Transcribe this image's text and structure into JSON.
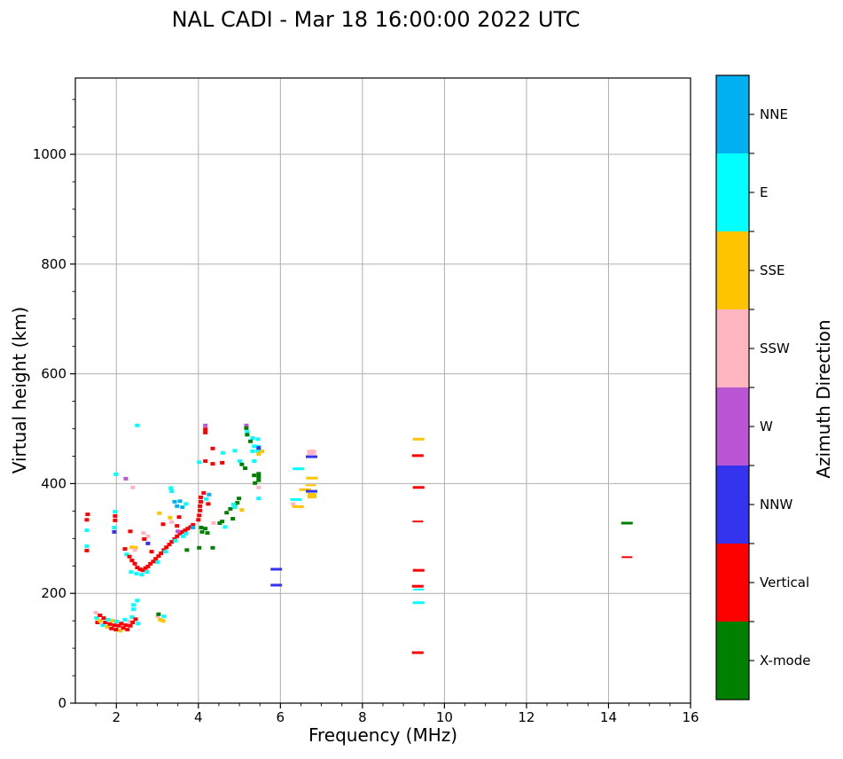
{
  "title": "NAL CADI - Mar 18 16:00:00 2022 UTC",
  "axes": {
    "xlabel": "Frequency (MHz)",
    "ylabel": "Virtual height (km)",
    "xlim": [
      1,
      16
    ],
    "ylim": [
      0,
      1139
    ],
    "xticks": [
      2,
      4,
      6,
      8,
      10,
      12,
      14,
      16
    ],
    "yticks": [
      0,
      200,
      400,
      600,
      800,
      1000
    ],
    "x_minor_step": 0.5,
    "y_minor_step": 50,
    "grid": true,
    "grid_color": "#b0b0b0",
    "spine_color": "#000000"
  },
  "colorbar": {
    "label": "Azimuth Direction",
    "entries": [
      {
        "label": "NNE",
        "color": "#00b0f0"
      },
      {
        "label": "E",
        "color": "#00ffff"
      },
      {
        "label": "SSE",
        "color": "#ffc400"
      },
      {
        "label": "SSW",
        "color": "#ffb6c1"
      },
      {
        "label": "W",
        "color": "#ba55d3"
      },
      {
        "label": "NNW",
        "color": "#3434ee"
      },
      {
        "label": "Vertical",
        "color": "#ff0000"
      },
      {
        "label": "X-mode",
        "color": "#008000"
      }
    ]
  },
  "chart_data": {
    "type": "scatter",
    "title": "NAL CADI - Mar 18 16:00:00 2022 UTC",
    "xlabel": "Frequency (MHz)",
    "ylabel": "Virtual height (km)",
    "xlim": [
      1,
      16
    ],
    "ylim": [
      0,
      1139
    ],
    "legend_position": "right-colorbar",
    "categories": [
      "NNE",
      "E",
      "SSE",
      "SSW",
      "W",
      "NNW",
      "Vertical",
      "X-mode"
    ],
    "point_format": "[freq_MHz, height_km, category_index, size_code(0=cell,1=dash,2=thin_dash,3=block)]",
    "points": [
      [
        1.5,
        165,
        3
      ],
      [
        1.52,
        155,
        1
      ],
      [
        1.54,
        147,
        6
      ],
      [
        1.6,
        160,
        6
      ],
      [
        1.6,
        150,
        2
      ],
      [
        1.67,
        142,
        1
      ],
      [
        1.69,
        155,
        6
      ],
      [
        1.73,
        147,
        6
      ],
      [
        1.78,
        139,
        2
      ],
      [
        1.8,
        152,
        1
      ],
      [
        1.84,
        144,
        6
      ],
      [
        1.88,
        136,
        6
      ],
      [
        1.91,
        150,
        2
      ],
      [
        1.95,
        142,
        6
      ],
      [
        1.99,
        134,
        6
      ],
      [
        2.01,
        149,
        1
      ],
      [
        2.06,
        141,
        6
      ],
      [
        2.1,
        132,
        2
      ],
      [
        2.12,
        145,
        6
      ],
      [
        2.17,
        137,
        6
      ],
      [
        2.21,
        152,
        1
      ],
      [
        2.23,
        142,
        6
      ],
      [
        2.27,
        134,
        6
      ],
      [
        2.32,
        149,
        3
      ],
      [
        2.34,
        141,
        6
      ],
      [
        2.38,
        157,
        1
      ],
      [
        2.4,
        147,
        6
      ],
      [
        2.42,
        171,
        1
      ],
      [
        2.42,
        179,
        1
      ],
      [
        2.51,
        187,
        1
      ],
      [
        2.47,
        153,
        6
      ],
      [
        2.53,
        145,
        1
      ],
      [
        3.01,
        158,
        3
      ],
      [
        3.03,
        162,
        7
      ],
      [
        3.07,
        152,
        2
      ],
      [
        3.14,
        150,
        2
      ],
      [
        3.16,
        158,
        1
      ],
      [
        1.3,
        344,
        6
      ],
      [
        1.28,
        334,
        6
      ],
      [
        1.28,
        315,
        1
      ],
      [
        1.28,
        286,
        1
      ],
      [
        1.28,
        278,
        6
      ],
      [
        1.97,
        349,
        1
      ],
      [
        1.97,
        341,
        6
      ],
      [
        1.97,
        333,
        6
      ],
      [
        1.95,
        320,
        1
      ],
      [
        1.95,
        312,
        5
      ],
      [
        1.99,
        417,
        1
      ],
      [
        2.23,
        409,
        4
      ],
      [
        2.4,
        393,
        3
      ],
      [
        2.51,
        506,
        1
      ],
      [
        2.34,
        313,
        6
      ],
      [
        2.77,
        304,
        3
      ],
      [
        2.77,
        291,
        5
      ],
      [
        2.38,
        284,
        2
      ],
      [
        2.47,
        283,
        2
      ],
      [
        2.21,
        281,
        6
      ],
      [
        2.25,
        271,
        1
      ],
      [
        2.68,
        299,
        6
      ],
      [
        2.66,
        310,
        3
      ],
      [
        2.45,
        279,
        3
      ],
      [
        2.32,
        267,
        6
      ],
      [
        2.38,
        260,
        6
      ],
      [
        2.45,
        254,
        6
      ],
      [
        2.51,
        247,
        6
      ],
      [
        2.58,
        244,
        6
      ],
      [
        2.64,
        242,
        6
      ],
      [
        2.71,
        246,
        6
      ],
      [
        2.77,
        249,
        6
      ],
      [
        2.83,
        254,
        6
      ],
      [
        2.9,
        258,
        6
      ],
      [
        2.86,
        276,
        6
      ],
      [
        2.36,
        239,
        1
      ],
      [
        2.49,
        236,
        1
      ],
      [
        2.62,
        234,
        1
      ],
      [
        2.75,
        239,
        1
      ],
      [
        2.96,
        263,
        6
      ],
      [
        3.03,
        268,
        6
      ],
      [
        3.09,
        273,
        6
      ],
      [
        3.16,
        279,
        6
      ],
      [
        3.22,
        284,
        6
      ],
      [
        3.29,
        289,
        6
      ],
      [
        3.35,
        294,
        6
      ],
      [
        3.42,
        299,
        6
      ],
      [
        3.48,
        304,
        6
      ],
      [
        3.55,
        309,
        6
      ],
      [
        3.61,
        312,
        6
      ],
      [
        3.68,
        315,
        6
      ],
      [
        3.74,
        318,
        6
      ],
      [
        3.81,
        321,
        6
      ],
      [
        3.87,
        325,
        6
      ],
      [
        3.2,
        276,
        1
      ],
      [
        3.44,
        296,
        1
      ],
      [
        3.63,
        304,
        1
      ],
      [
        3.01,
        257,
        1
      ],
      [
        3.7,
        309,
        1
      ],
      [
        3.05,
        346,
        2
      ],
      [
        3.31,
        338,
        2
      ],
      [
        3.35,
        330,
        3
      ],
      [
        3.53,
        339,
        6
      ],
      [
        3.14,
        326,
        6
      ],
      [
        3.5,
        313,
        4
      ],
      [
        3.48,
        323,
        6
      ],
      [
        4.0,
        334,
        6
      ],
      [
        4.02,
        342,
        6
      ],
      [
        4.04,
        351,
        6
      ],
      [
        4.04,
        359,
        6
      ],
      [
        4.06,
        367,
        6
      ],
      [
        4.06,
        375,
        6
      ],
      [
        4.19,
        372,
        1
      ],
      [
        4.24,
        363,
        6
      ],
      [
        4.26,
        380,
        0
      ],
      [
        4.13,
        383,
        6
      ],
      [
        4.07,
        320,
        7
      ],
      [
        4.17,
        318,
        7
      ],
      [
        4.09,
        312,
        7
      ],
      [
        4.22,
        310,
        7
      ],
      [
        4.02,
        283,
        7
      ],
      [
        4.35,
        283,
        7
      ],
      [
        3.72,
        279,
        7
      ],
      [
        4.52,
        328,
        7
      ],
      [
        4.58,
        331,
        7
      ],
      [
        4.37,
        328,
        3
      ],
      [
        4.65,
        321,
        1
      ],
      [
        4.69,
        347,
        7
      ],
      [
        4.78,
        354,
        7
      ],
      [
        4.84,
        336,
        7
      ],
      [
        4.89,
        360,
        7
      ],
      [
        4.95,
        365,
        7
      ],
      [
        4.99,
        373,
        7
      ],
      [
        4.86,
        362,
        1
      ],
      [
        3.42,
        367,
        0
      ],
      [
        3.55,
        368,
        0
      ],
      [
        3.48,
        359,
        0
      ],
      [
        3.61,
        357,
        0
      ],
      [
        3.7,
        363,
        1
      ],
      [
        3.33,
        392,
        1
      ],
      [
        3.35,
        386,
        1
      ],
      [
        3.87,
        320,
        0
      ],
      [
        4.17,
        441,
        6
      ],
      [
        4.35,
        436,
        6
      ],
      [
        4.58,
        438,
        6
      ],
      [
        4.35,
        464,
        6
      ],
      [
        4.02,
        439,
        1
      ],
      [
        4.6,
        456,
        1
      ],
      [
        4.89,
        460,
        1
      ],
      [
        5.01,
        441,
        1
      ],
      [
        5.06,
        435,
        7
      ],
      [
        5.14,
        428,
        7
      ],
      [
        5.36,
        441,
        1
      ],
      [
        5.06,
        352,
        2
      ],
      [
        4.89,
        357,
        1
      ],
      [
        4.17,
        506,
        4
      ],
      [
        4.17,
        499,
        6
      ],
      [
        4.17,
        493,
        6
      ],
      [
        5.17,
        506,
        4
      ],
      [
        5.17,
        501,
        7
      ],
      [
        5.19,
        494,
        1
      ],
      [
        5.19,
        489,
        7
      ],
      [
        5.32,
        483,
        1
      ],
      [
        5.45,
        481,
        1
      ],
      [
        5.27,
        477,
        7
      ],
      [
        5.36,
        468,
        1
      ],
      [
        5.47,
        467,
        1
      ],
      [
        5.32,
        459,
        1
      ],
      [
        5.45,
        459,
        1
      ],
      [
        5.55,
        459,
        2
      ],
      [
        5.47,
        465,
        5
      ],
      [
        5.47,
        454,
        2
      ],
      [
        5.47,
        418,
        7
      ],
      [
        5.47,
        412,
        7
      ],
      [
        5.47,
        406,
        7
      ],
      [
        5.36,
        415,
        7
      ],
      [
        5.38,
        401,
        7
      ],
      [
        5.47,
        393,
        3
      ],
      [
        5.47,
        373,
        1
      ],
      [
        6.44,
        427,
        1,
        1
      ],
      [
        6.31,
        363,
        3
      ],
      [
        6.43,
        358,
        2,
        1
      ],
      [
        6.38,
        371,
        1,
        1
      ],
      [
        6.6,
        389,
        2,
        1
      ],
      [
        6.74,
        397,
        2,
        2
      ],
      [
        6.77,
        410,
        2,
        1
      ],
      [
        6.76,
        386,
        5,
        1
      ],
      [
        6.77,
        378,
        2,
        3
      ],
      [
        6.76,
        457,
        3,
        3
      ],
      [
        6.76,
        449,
        5,
        1
      ],
      [
        5.9,
        244,
        5,
        1
      ],
      [
        5.9,
        215,
        5,
        1
      ],
      [
        9.37,
        481,
        2,
        1
      ],
      [
        9.35,
        451,
        6,
        1
      ],
      [
        9.37,
        393,
        6,
        1
      ],
      [
        9.35,
        331,
        6,
        2
      ],
      [
        9.37,
        242,
        6,
        1
      ],
      [
        9.35,
        213,
        6,
        1
      ],
      [
        9.37,
        207,
        1,
        2
      ],
      [
        9.37,
        183,
        1,
        1
      ],
      [
        9.35,
        92,
        6,
        1
      ],
      [
        14.45,
        328,
        7,
        1
      ],
      [
        14.45,
        266,
        6,
        2
      ]
    ]
  }
}
